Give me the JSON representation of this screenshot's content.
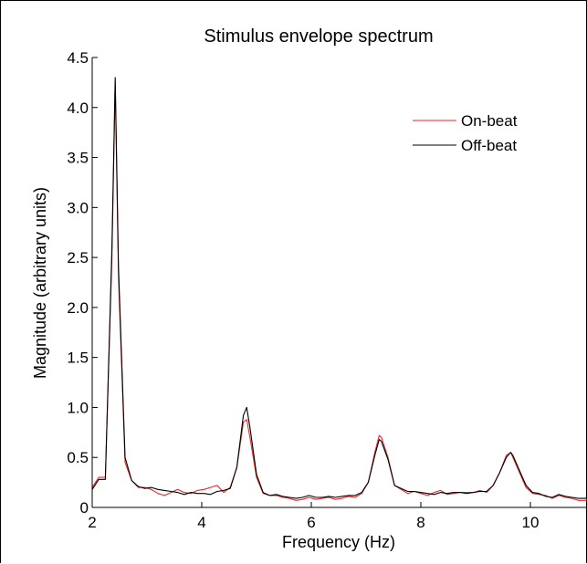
{
  "chart_data": {
    "type": "line",
    "title": "Stimulus envelope spectrum",
    "xlabel": "Frequency (Hz)",
    "ylabel": "Magnitude (arbitrary units)",
    "xlim": [
      2,
      11.05
    ],
    "ylim": [
      0,
      4.5
    ],
    "xticks": [
      2,
      4,
      6,
      8,
      10
    ],
    "xtick_labels": [
      "2",
      "4",
      "6",
      "8",
      "10"
    ],
    "yticks": [
      0,
      0.5,
      1.0,
      1.5,
      2.0,
      2.5,
      3.0,
      3.5,
      4.0,
      4.5
    ],
    "ytick_labels": [
      "0",
      "0.5",
      "1.0",
      "1.5",
      "2.0",
      "2.5",
      "3.0",
      "3.5",
      "4.0",
      "4.5"
    ],
    "grid": false,
    "legend_position": "top-right",
    "x": [
      2.0,
      2.12,
      2.24,
      2.36,
      2.42,
      2.48,
      2.6,
      2.72,
      2.84,
      2.96,
      3.08,
      3.2,
      3.32,
      3.44,
      3.56,
      3.68,
      3.8,
      3.92,
      4.04,
      4.16,
      4.28,
      4.4,
      4.52,
      4.64,
      4.76,
      4.82,
      4.88,
      5.0,
      5.12,
      5.24,
      5.36,
      5.48,
      5.6,
      5.72,
      5.84,
      5.96,
      6.08,
      6.2,
      6.32,
      6.44,
      6.56,
      6.68,
      6.8,
      6.92,
      7.04,
      7.16,
      7.24,
      7.28,
      7.4,
      7.52,
      7.64,
      7.76,
      7.88,
      8.0,
      8.12,
      8.24,
      8.36,
      8.48,
      8.6,
      8.72,
      8.84,
      8.96,
      9.08,
      9.2,
      9.32,
      9.44,
      9.56,
      9.64,
      9.68,
      9.8,
      9.92,
      10.04,
      10.16,
      10.28,
      10.4,
      10.52,
      10.64,
      10.76,
      10.88,
      11.0,
      11.05
    ],
    "series": [
      {
        "name": "On-beat",
        "color": "#e8262a",
        "values": [
          0.2,
          0.3,
          0.3,
          2.5,
          4.25,
          2.3,
          0.45,
          0.27,
          0.2,
          0.2,
          0.18,
          0.14,
          0.12,
          0.15,
          0.18,
          0.15,
          0.14,
          0.17,
          0.18,
          0.2,
          0.22,
          0.15,
          0.2,
          0.4,
          0.85,
          0.88,
          0.7,
          0.3,
          0.14,
          0.12,
          0.12,
          0.1,
          0.09,
          0.07,
          0.08,
          0.1,
          0.08,
          0.09,
          0.1,
          0.08,
          0.09,
          0.11,
          0.1,
          0.14,
          0.25,
          0.55,
          0.72,
          0.7,
          0.5,
          0.22,
          0.18,
          0.14,
          0.16,
          0.14,
          0.12,
          0.15,
          0.17,
          0.13,
          0.14,
          0.15,
          0.15,
          0.15,
          0.17,
          0.15,
          0.22,
          0.35,
          0.52,
          0.55,
          0.5,
          0.35,
          0.2,
          0.14,
          0.13,
          0.12,
          0.09,
          0.12,
          0.1,
          0.09,
          0.07,
          0.07,
          0.08
        ]
      },
      {
        "name": "Off-beat",
        "color": "#000000",
        "values": [
          0.18,
          0.28,
          0.28,
          2.6,
          4.3,
          2.4,
          0.5,
          0.27,
          0.21,
          0.19,
          0.2,
          0.18,
          0.17,
          0.16,
          0.15,
          0.13,
          0.15,
          0.14,
          0.14,
          0.13,
          0.16,
          0.17,
          0.19,
          0.4,
          0.92,
          1.0,
          0.8,
          0.33,
          0.15,
          0.12,
          0.13,
          0.11,
          0.1,
          0.09,
          0.1,
          0.12,
          0.1,
          0.1,
          0.11,
          0.1,
          0.11,
          0.12,
          0.12,
          0.15,
          0.25,
          0.52,
          0.68,
          0.66,
          0.48,
          0.22,
          0.19,
          0.16,
          0.16,
          0.15,
          0.14,
          0.13,
          0.15,
          0.14,
          0.15,
          0.15,
          0.14,
          0.15,
          0.16,
          0.16,
          0.22,
          0.35,
          0.5,
          0.55,
          0.52,
          0.37,
          0.22,
          0.15,
          0.14,
          0.11,
          0.1,
          0.13,
          0.11,
          0.1,
          0.09,
          0.09,
          0.1
        ]
      }
    ]
  }
}
